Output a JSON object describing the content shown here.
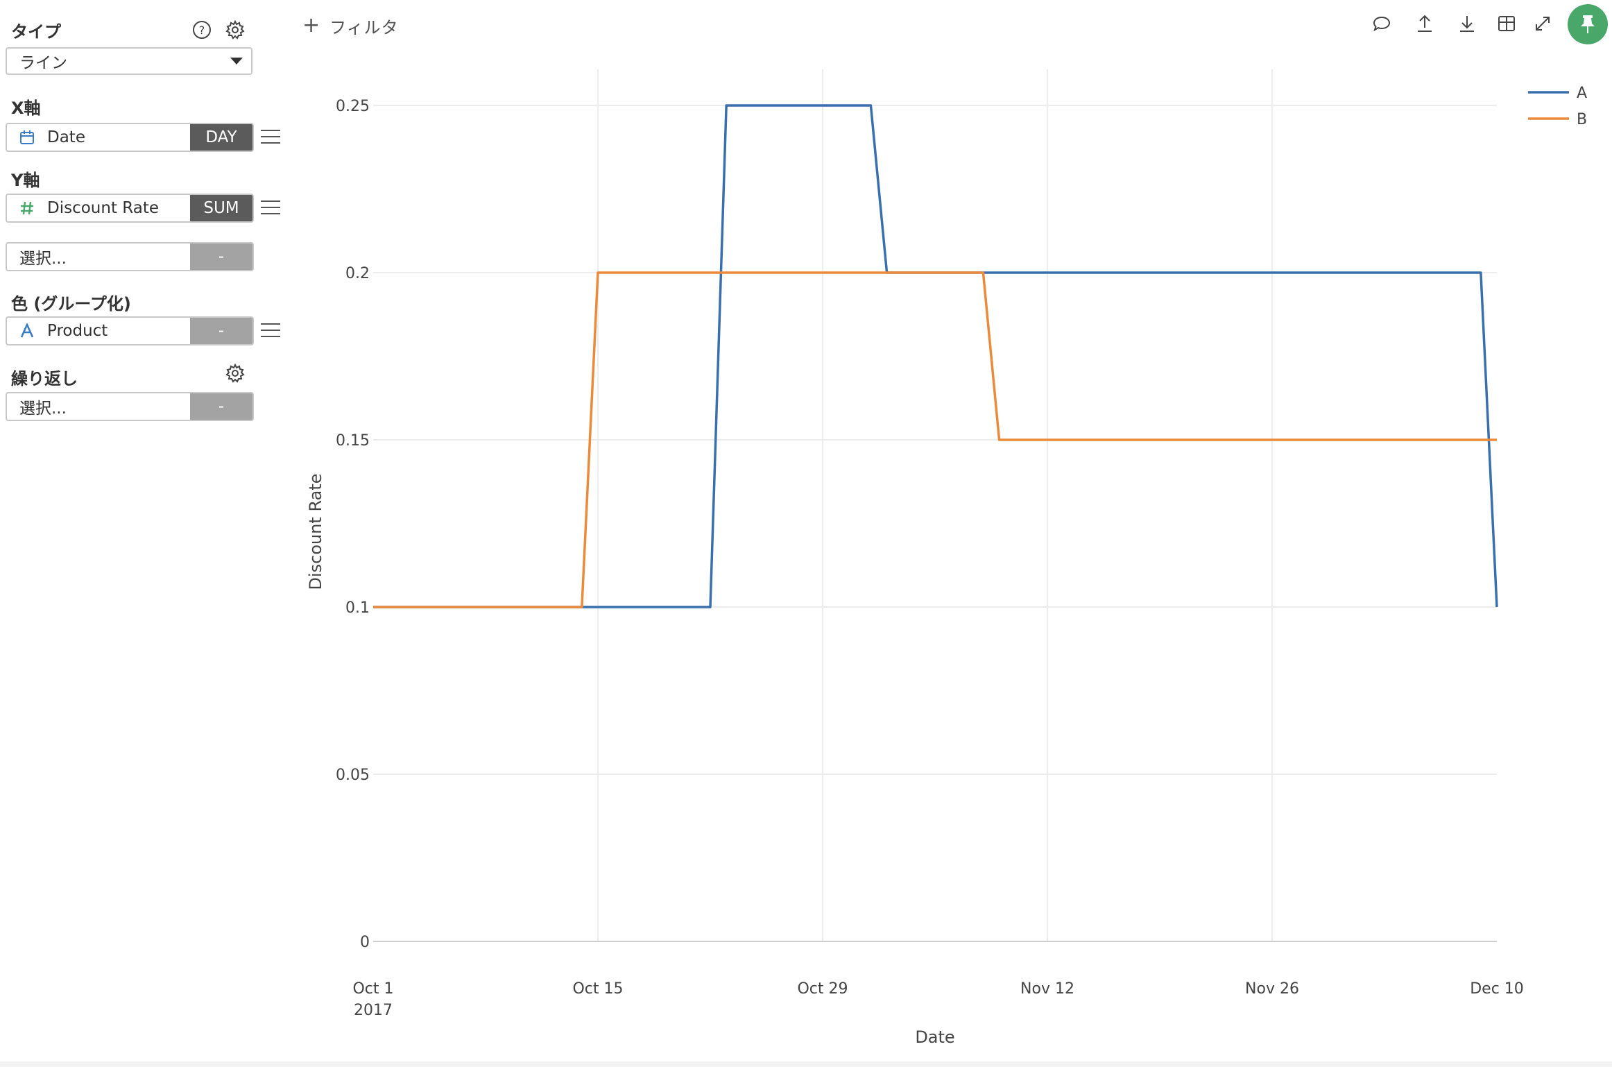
{
  "panel": {
    "type": {
      "label": "タイプ",
      "value": "ライン"
    },
    "x_axis": {
      "label": "X軸",
      "field": "Date",
      "tag": "DAY"
    },
    "y_axis": {
      "label": "Y軸",
      "field": "Discount Rate",
      "tag": "SUM",
      "extra_placeholder": "選択...",
      "extra_tag": "-"
    },
    "color": {
      "label": "色 (グループ化)",
      "field": "Product",
      "tag": "-"
    },
    "repeat": {
      "label": "繰り返し",
      "placeholder": "選択...",
      "tag": "-"
    }
  },
  "toolbar": {
    "filter_label": "フィルタ"
  },
  "colors": {
    "A": "#3a6fae",
    "B": "#ec8a3c",
    "pin": "#4aa76a"
  },
  "chart_data": {
    "type": "line",
    "line_shape": "linear",
    "xlabel": "Date",
    "ylabel": "Discount Rate",
    "x_ticks": [
      {
        "date": "2017-10-01",
        "label": "Oct 1",
        "sub": "2017"
      },
      {
        "date": "2017-10-15",
        "label": "Oct 15"
      },
      {
        "date": "2017-10-29",
        "label": "Oct 29"
      },
      {
        "date": "2017-11-12",
        "label": "Nov 12"
      },
      {
        "date": "2017-11-26",
        "label": "Nov 26"
      },
      {
        "date": "2017-12-10",
        "label": "Dec 10"
      }
    ],
    "xlim": [
      "2017-10-01",
      "2017-12-10"
    ],
    "y_ticks": [
      0,
      0.05,
      0.1,
      0.15,
      0.2,
      0.25
    ],
    "ylim": [
      0,
      0.25
    ],
    "grid": true,
    "legend_position": "top-right",
    "series": [
      {
        "name": "A",
        "points": [
          [
            "2017-10-01",
            0.1
          ],
          [
            "2017-10-22",
            0.1
          ],
          [
            "2017-10-23",
            0.25
          ],
          [
            "2017-11-01",
            0.25
          ],
          [
            "2017-11-02",
            0.2
          ],
          [
            "2017-12-09",
            0.2
          ],
          [
            "2017-12-10",
            0.1
          ]
        ]
      },
      {
        "name": "B",
        "points": [
          [
            "2017-10-01",
            0.1
          ],
          [
            "2017-10-14",
            0.1
          ],
          [
            "2017-10-15",
            0.2
          ],
          [
            "2017-11-08",
            0.2
          ],
          [
            "2017-11-09",
            0.15
          ],
          [
            "2017-12-10",
            0.15
          ]
        ]
      }
    ]
  }
}
